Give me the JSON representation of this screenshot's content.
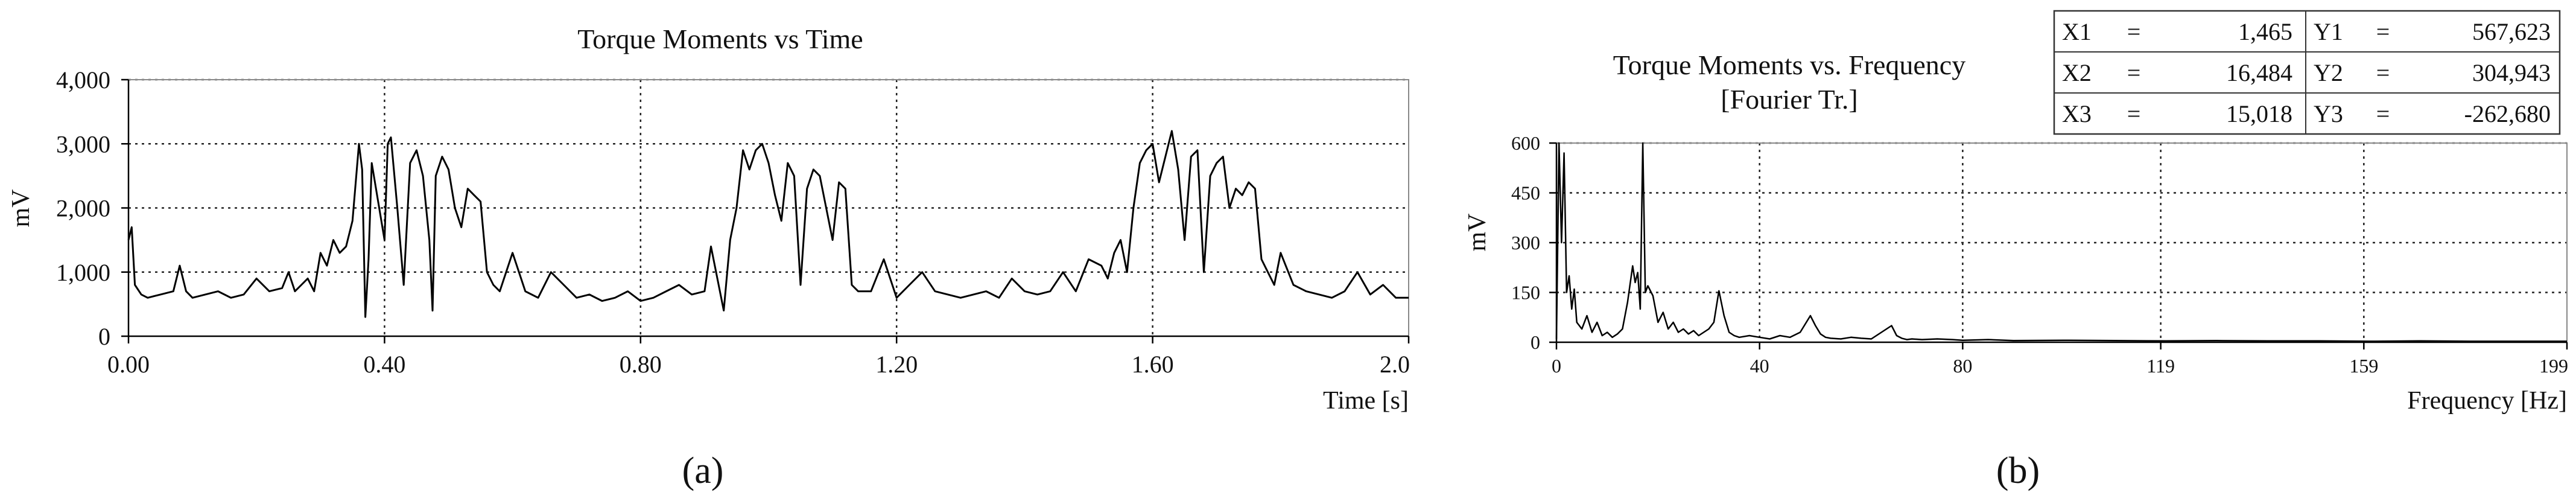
{
  "chart_data": [
    {
      "type": "line",
      "panel_label": "(a)",
      "title": "Torque Moments vs Time",
      "xlabel": "Time [s]",
      "ylabel": "mV",
      "xlim": [
        0.0,
        2.0
      ],
      "ylim": [
        0,
        4000
      ],
      "x_ticks": [
        0.0,
        0.4,
        0.8,
        1.2,
        1.6,
        2.0
      ],
      "x_tick_labels": [
        "0.00",
        "0.40",
        "0.80",
        "1.20",
        "1.60",
        "2.0"
      ],
      "y_ticks": [
        0,
        1000,
        2000,
        3000,
        4000
      ],
      "y_tick_labels": [
        "0",
        "1,000",
        "2,000",
        "3,000",
        "4,000"
      ],
      "grid": true,
      "series": [
        {
          "x": [
            0.0,
            0.005,
            0.01,
            0.02,
            0.03,
            0.05,
            0.07,
            0.08,
            0.09,
            0.1,
            0.12,
            0.14,
            0.16,
            0.18,
            0.2,
            0.22,
            0.24,
            0.25,
            0.26,
            0.27,
            0.28,
            0.29,
            0.3,
            0.31,
            0.32,
            0.33,
            0.34,
            0.35,
            0.36,
            0.365,
            0.37,
            0.375,
            0.38,
            0.39,
            0.4,
            0.405,
            0.41,
            0.42,
            0.43,
            0.44,
            0.45,
            0.46,
            0.47,
            0.475,
            0.48,
            0.49,
            0.5,
            0.51,
            0.52,
            0.53,
            0.54,
            0.55,
            0.56,
            0.57,
            0.58,
            0.6,
            0.62,
            0.64,
            0.66,
            0.68,
            0.7,
            0.72,
            0.74,
            0.76,
            0.78,
            0.8,
            0.82,
            0.84,
            0.86,
            0.88,
            0.9,
            0.91,
            0.92,
            0.93,
            0.94,
            0.95,
            0.96,
            0.97,
            0.98,
            0.99,
            1.0,
            1.01,
            1.02,
            1.03,
            1.04,
            1.05,
            1.06,
            1.07,
            1.08,
            1.09,
            1.1,
            1.11,
            1.12,
            1.13,
            1.14,
            1.16,
            1.18,
            1.2,
            1.22,
            1.24,
            1.26,
            1.28,
            1.3,
            1.32,
            1.34,
            1.36,
            1.38,
            1.4,
            1.42,
            1.44,
            1.46,
            1.48,
            1.5,
            1.52,
            1.53,
            1.54,
            1.55,
            1.56,
            1.57,
            1.58,
            1.59,
            1.6,
            1.61,
            1.62,
            1.63,
            1.64,
            1.65,
            1.66,
            1.67,
            1.68,
            1.69,
            1.7,
            1.71,
            1.72,
            1.73,
            1.74,
            1.75,
            1.76,
            1.77,
            1.78,
            1.79,
            1.8,
            1.82,
            1.84,
            1.86,
            1.88,
            1.9,
            1.92,
            1.94,
            1.96,
            1.98,
            2.0
          ],
          "values": [
            1500,
            1700,
            800,
            650,
            600,
            650,
            700,
            1100,
            700,
            600,
            650,
            700,
            600,
            650,
            900,
            700,
            750,
            1000,
            700,
            800,
            900,
            700,
            1300,
            1100,
            1500,
            1300,
            1400,
            1800,
            3000,
            2600,
            300,
            1200,
            2700,
            2100,
            1500,
            3000,
            3100,
            2000,
            800,
            2700,
            2900,
            2500,
            1500,
            400,
            2500,
            2800,
            2600,
            2000,
            1700,
            2300,
            2200,
            2100,
            1000,
            800,
            700,
            1300,
            700,
            600,
            1000,
            800,
            600,
            650,
            550,
            600,
            700,
            550,
            600,
            700,
            800,
            650,
            700,
            1400,
            900,
            400,
            1500,
            2000,
            2900,
            2600,
            2900,
            3000,
            2700,
            2200,
            1800,
            2700,
            2500,
            800,
            2300,
            2600,
            2500,
            2000,
            1500,
            2400,
            2300,
            800,
            700,
            700,
            1200,
            600,
            800,
            1000,
            700,
            650,
            600,
            650,
            700,
            600,
            900,
            700,
            650,
            700,
            1000,
            700,
            1200,
            1100,
            900,
            1300,
            1500,
            1000,
            2000,
            2700,
            2900,
            3000,
            2400,
            2800,
            3200,
            2600,
            1500,
            2800,
            2900,
            1000,
            2500,
            2700,
            2800,
            2000,
            2300,
            2200,
            2400,
            2300,
            1200,
            1000,
            800,
            1300,
            800,
            700,
            650,
            600,
            700,
            1000,
            650,
            800,
            600,
            600
          ]
        }
      ]
    },
    {
      "type": "line",
      "panel_label": "(b)",
      "title": "Torque Moments vs. Frequency",
      "subtitle": "[Fourier Tr.]",
      "xlabel": "Frequency [Hz]",
      "ylabel": "mV",
      "xlim": [
        0,
        199
      ],
      "ylim": [
        0,
        600
      ],
      "x_ticks": [
        0,
        40,
        80,
        119,
        159,
        199
      ],
      "x_tick_labels": [
        "0",
        "40",
        "80",
        "119",
        "159",
        "199"
      ],
      "y_ticks": [
        0,
        150,
        300,
        450,
        600
      ],
      "y_tick_labels": [
        "0",
        "150",
        "300",
        "450",
        "600"
      ],
      "grid": true,
      "cursor_table": [
        [
          "X1",
          "=",
          "1,465",
          "Y1",
          "=",
          "567,623"
        ],
        [
          "X2",
          "=",
          "16,484",
          "Y2",
          "=",
          "304,943"
        ],
        [
          "X3",
          "=",
          "15,018",
          "Y3",
          "=",
          "-262,680"
        ]
      ],
      "series": [
        {
          "x": [
            0,
            0.5,
            1.0,
            1.5,
            2.0,
            2.5,
            3,
            3.5,
            4,
            5,
            6,
            7,
            8,
            9,
            10,
            11,
            12,
            13,
            14,
            15,
            15.5,
            16,
            16.5,
            17,
            17.5,
            18,
            19,
            20,
            21,
            22,
            23,
            24,
            25,
            26,
            27,
            28,
            29,
            30,
            31,
            32,
            33,
            34,
            35,
            36,
            38,
            40,
            42,
            44,
            46,
            48,
            50,
            51,
            52,
            53,
            54,
            56,
            58,
            60,
            62,
            64,
            66,
            67,
            68,
            69,
            70,
            72,
            75,
            78,
            80,
            85,
            90,
            100,
            110,
            120,
            130,
            140,
            150,
            160,
            170,
            180,
            190,
            199
          ],
          "values": [
            10,
            600,
            300,
            570,
            150,
            200,
            100,
            160,
            60,
            40,
            80,
            30,
            60,
            20,
            30,
            15,
            25,
            40,
            120,
            230,
            180,
            210,
            100,
            600,
            150,
            170,
            140,
            60,
            90,
            40,
            60,
            30,
            40,
            25,
            35,
            20,
            30,
            40,
            60,
            155,
            80,
            30,
            20,
            15,
            20,
            15,
            10,
            20,
            15,
            30,
            80,
            50,
            25,
            15,
            12,
            10,
            15,
            12,
            10,
            30,
            50,
            20,
            12,
            8,
            10,
            8,
            10,
            8,
            6,
            8,
            5,
            6,
            5,
            4,
            5,
            4,
            4,
            3,
            4,
            3,
            3,
            3
          ]
        }
      ]
    }
  ]
}
